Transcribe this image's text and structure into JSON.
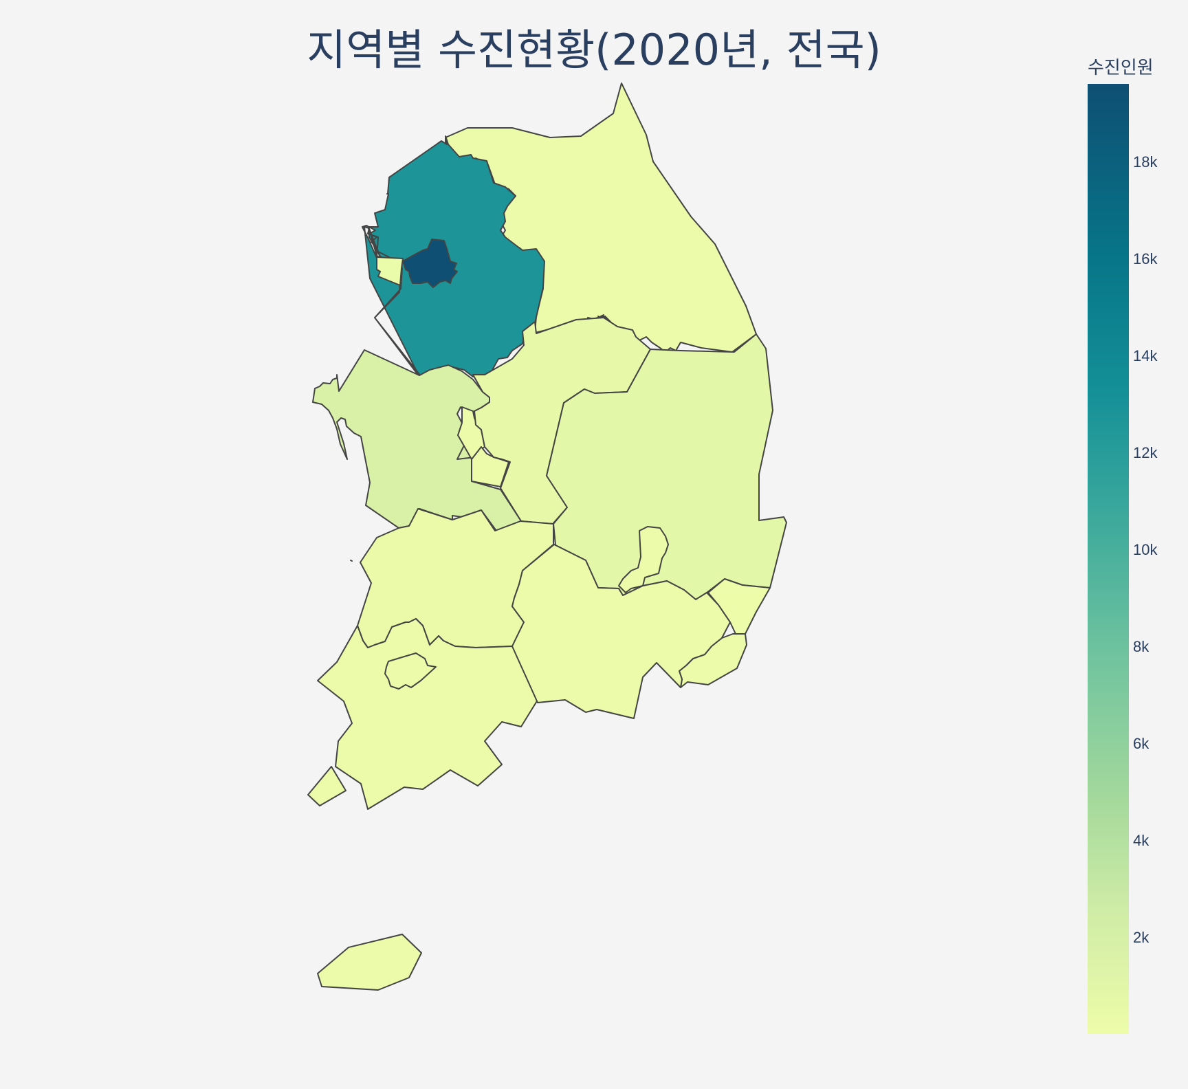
{
  "title": "지역별 수진현황(2020년, 전국)",
  "colorbar": {
    "title": "수진인원",
    "ticks": [
      "18k",
      "16k",
      "14k",
      "12k",
      "10k",
      "8k",
      "6k",
      "4k",
      "2k"
    ],
    "min": 0,
    "max": 19600,
    "colorscale": [
      "#edfca9",
      "#cfeca6",
      "#a3d89c",
      "#6fc39e",
      "#3aa89c",
      "#138f97",
      "#077588",
      "#0e4f73"
    ]
  },
  "regions": [
    {
      "id": "seoul",
      "value": 19600
    },
    {
      "id": "gyeonggi",
      "value": 13300
    },
    {
      "id": "incheon",
      "value": 250
    },
    {
      "id": "gangwon",
      "value": 200
    },
    {
      "id": "chungbuk",
      "value": 600
    },
    {
      "id": "chungnam",
      "value": 1900
    },
    {
      "id": "sejong",
      "value": 150
    },
    {
      "id": "daejeon",
      "value": 200
    },
    {
      "id": "gyeongbuk",
      "value": 900
    },
    {
      "id": "daegu",
      "value": 200
    },
    {
      "id": "jeonbuk",
      "value": 300
    },
    {
      "id": "gwangju",
      "value": 150
    },
    {
      "id": "jeonnam",
      "value": 200
    },
    {
      "id": "gyeongnam",
      "value": 200
    },
    {
      "id": "ulsan",
      "value": 80
    },
    {
      "id": "busan",
      "value": 150
    },
    {
      "id": "jeju",
      "value": 100
    }
  ]
}
